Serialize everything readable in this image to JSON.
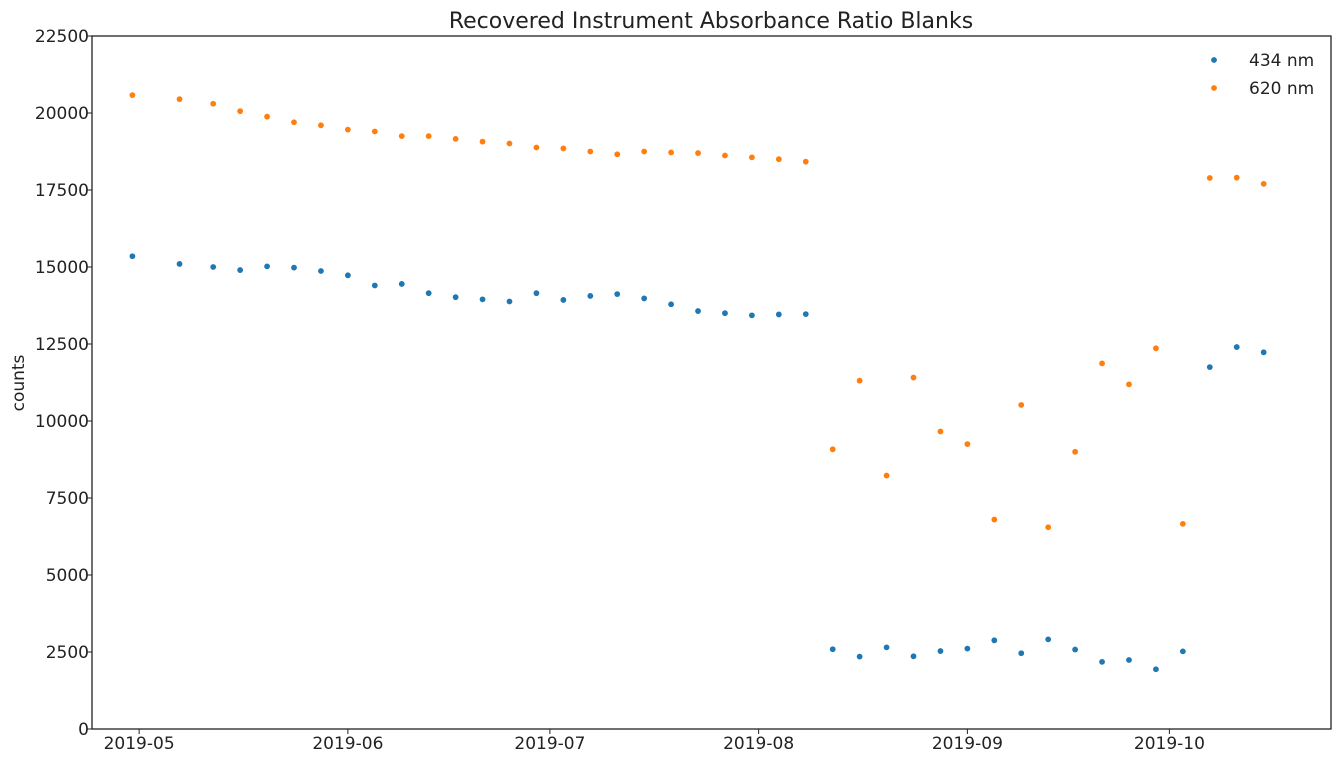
{
  "chart_data": {
    "type": "scatter",
    "title": "Recovered Instrument Absorbance Ratio Blanks",
    "xlabel": "",
    "ylabel": "counts",
    "x_type": "date",
    "xlim": [
      "2019-04-24",
      "2019-10-25"
    ],
    "ylim": [
      0,
      22500
    ],
    "yticks": [
      0,
      2500,
      5000,
      7500,
      10000,
      12500,
      15000,
      17500,
      20000,
      22500
    ],
    "xticks": [
      "2019-05-01",
      "2019-06-01",
      "2019-07-01",
      "2019-08-01",
      "2019-09-01",
      "2019-10-01"
    ],
    "xtick_labels": [
      "2019-05",
      "2019-06",
      "2019-07",
      "2019-08",
      "2019-09",
      "2019-10"
    ],
    "grid": false,
    "legend_position": "top-right",
    "series": [
      {
        "name": "434 nm",
        "color": "#1f77b4",
        "points": [
          [
            "2019-04-30",
            15350
          ],
          [
            "2019-05-07",
            15100
          ],
          [
            "2019-05-12",
            15000
          ],
          [
            "2019-05-16",
            14900
          ],
          [
            "2019-05-20",
            15020
          ],
          [
            "2019-05-24",
            14980
          ],
          [
            "2019-05-28",
            14870
          ],
          [
            "2019-06-01",
            14730
          ],
          [
            "2019-06-05",
            14400
          ],
          [
            "2019-06-09",
            14450
          ],
          [
            "2019-06-13",
            14150
          ],
          [
            "2019-06-17",
            14020
          ],
          [
            "2019-06-21",
            13950
          ],
          [
            "2019-06-25",
            13880
          ],
          [
            "2019-06-29",
            14150
          ],
          [
            "2019-07-03",
            13930
          ],
          [
            "2019-07-07",
            14060
          ],
          [
            "2019-07-11",
            14120
          ],
          [
            "2019-07-15",
            13980
          ],
          [
            "2019-07-19",
            13790
          ],
          [
            "2019-07-23",
            13570
          ],
          [
            "2019-07-27",
            13500
          ],
          [
            "2019-07-31",
            13430
          ],
          [
            "2019-08-04",
            13460
          ],
          [
            "2019-08-08",
            13470
          ],
          [
            "2019-08-12",
            2590
          ],
          [
            "2019-08-16",
            2350
          ],
          [
            "2019-08-20",
            2650
          ],
          [
            "2019-08-24",
            2360
          ],
          [
            "2019-08-28",
            2530
          ],
          [
            "2019-09-01",
            2610
          ],
          [
            "2019-09-05",
            2880
          ],
          [
            "2019-09-09",
            2460
          ],
          [
            "2019-09-13",
            2910
          ],
          [
            "2019-09-17",
            2580
          ],
          [
            "2019-09-21",
            2180
          ],
          [
            "2019-09-25",
            2240
          ],
          [
            "2019-09-29",
            1940
          ],
          [
            "2019-10-03",
            2520
          ],
          [
            "2019-10-07",
            11750
          ],
          [
            "2019-10-11",
            12400
          ],
          [
            "2019-10-15",
            12230
          ]
        ]
      },
      {
        "name": "620 nm",
        "color": "#ff7f0e",
        "points": [
          [
            "2019-04-30",
            20580
          ],
          [
            "2019-05-07",
            20450
          ],
          [
            "2019-05-12",
            20300
          ],
          [
            "2019-05-16",
            20060
          ],
          [
            "2019-05-20",
            19880
          ],
          [
            "2019-05-24",
            19700
          ],
          [
            "2019-05-28",
            19600
          ],
          [
            "2019-06-01",
            19460
          ],
          [
            "2019-06-05",
            19400
          ],
          [
            "2019-06-09",
            19250
          ],
          [
            "2019-06-13",
            19250
          ],
          [
            "2019-06-17",
            19160
          ],
          [
            "2019-06-21",
            19070
          ],
          [
            "2019-06-25",
            19010
          ],
          [
            "2019-06-29",
            18880
          ],
          [
            "2019-07-03",
            18850
          ],
          [
            "2019-07-07",
            18750
          ],
          [
            "2019-07-11",
            18660
          ],
          [
            "2019-07-15",
            18750
          ],
          [
            "2019-07-19",
            18720
          ],
          [
            "2019-07-23",
            18700
          ],
          [
            "2019-07-27",
            18620
          ],
          [
            "2019-07-31",
            18560
          ],
          [
            "2019-08-04",
            18500
          ],
          [
            "2019-08-08",
            18420
          ],
          [
            "2019-08-12",
            9080
          ],
          [
            "2019-08-16",
            11310
          ],
          [
            "2019-08-20",
            8230
          ],
          [
            "2019-08-24",
            11410
          ],
          [
            "2019-08-28",
            9660
          ],
          [
            "2019-09-01",
            9250
          ],
          [
            "2019-09-05",
            6800
          ],
          [
            "2019-09-09",
            10520
          ],
          [
            "2019-09-13",
            6550
          ],
          [
            "2019-09-17",
            9000
          ],
          [
            "2019-09-21",
            11870
          ],
          [
            "2019-09-25",
            11190
          ],
          [
            "2019-09-29",
            12360
          ],
          [
            "2019-10-03",
            6660
          ],
          [
            "2019-10-07",
            17890
          ],
          [
            "2019-10-11",
            17900
          ],
          [
            "2019-10-15",
            17700
          ]
        ]
      }
    ]
  }
}
